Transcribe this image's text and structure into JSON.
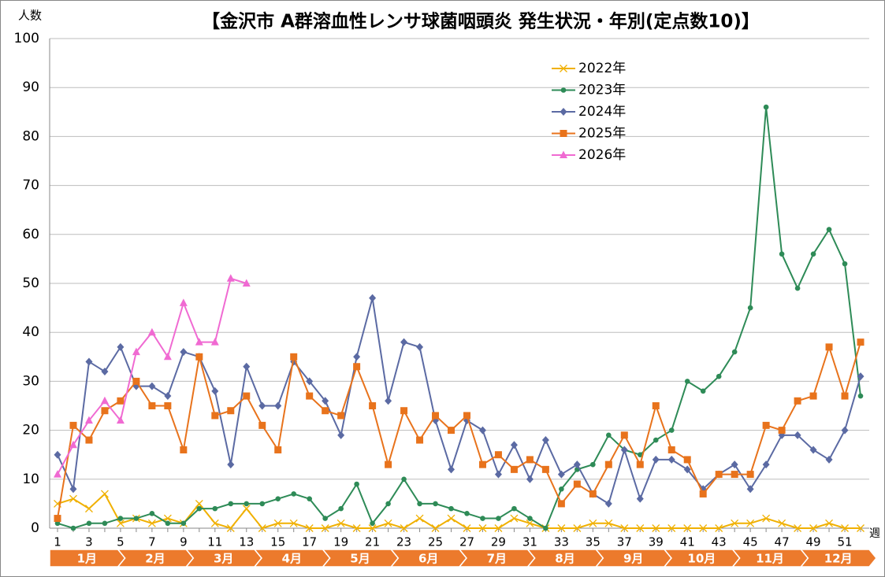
{
  "chart_data": {
    "type": "line",
    "title": "【金沢市 A群溶血性レンサ球菌咽頭炎 発生状況・年別(定点数10)】",
    "y_label": "人数",
    "x_label": "週",
    "categories": [
      1,
      null,
      3,
      null,
      5,
      null,
      7,
      null,
      9,
      null,
      11,
      null,
      13,
      null,
      15,
      null,
      17,
      null,
      19,
      null,
      21,
      null,
      23,
      null,
      25,
      null,
      27,
      null,
      29,
      null,
      31,
      null,
      33,
      null,
      35,
      null,
      37,
      null,
      39,
      null,
      41,
      null,
      43,
      null,
      45,
      null,
      47,
      null,
      49,
      null,
      51,
      null
    ],
    "months": [
      "1月",
      "2月",
      "3月",
      "4月",
      "5月",
      "6月",
      "7月",
      "8月",
      "9月",
      "10月",
      "11月",
      "12月"
    ],
    "ylim": [
      0,
      100
    ],
    "yticks": [
      0,
      10,
      20,
      30,
      40,
      50,
      60,
      70,
      80,
      90,
      100
    ],
    "grid": true,
    "legend": "top-right",
    "series": [
      {
        "name": "2022年",
        "color": "#f0b000",
        "marker": "x",
        "values": [
          5,
          6,
          4,
          7,
          1,
          2,
          1,
          2,
          1,
          5,
          1,
          0,
          4,
          0,
          1,
          1,
          0,
          0,
          1,
          0,
          0,
          1,
          0,
          2,
          0,
          2,
          0,
          0,
          0,
          2,
          1,
          0,
          0,
          0,
          1,
          1,
          0,
          0,
          0,
          0,
          0,
          0,
          0,
          1,
          1,
          2,
          1,
          0,
          0,
          1,
          0,
          0
        ]
      },
      {
        "name": "2023年",
        "color": "#2e8b57",
        "marker": "circle",
        "values": [
          1,
          0,
          1,
          1,
          2,
          2,
          3,
          1,
          1,
          4,
          4,
          5,
          5,
          5,
          6,
          7,
          6,
          2,
          4,
          9,
          1,
          5,
          10,
          5,
          5,
          4,
          3,
          2,
          2,
          4,
          2,
          0,
          8,
          12,
          13,
          19,
          16,
          15,
          18,
          20,
          30,
          28,
          31,
          36,
          45,
          86,
          56,
          49,
          56,
          61,
          54,
          27
        ]
      },
      {
        "name": "2024年",
        "color": "#5b6aa3",
        "marker": "diamond",
        "values": [
          15,
          8,
          34,
          32,
          37,
          29,
          29,
          27,
          36,
          35,
          28,
          13,
          33,
          25,
          25,
          34,
          30,
          26,
          19,
          35,
          47,
          26,
          38,
          37,
          22,
          12,
          22,
          20,
          11,
          17,
          10,
          18,
          11,
          13,
          7,
          5,
          16,
          6,
          14,
          14,
          12,
          8,
          11,
          13,
          8,
          13,
          19,
          19,
          16,
          14,
          20,
          31
        ]
      },
      {
        "name": "2025年",
        "color": "#e8731c",
        "marker": "square",
        "values": [
          2,
          21,
          18,
          24,
          26,
          30,
          25,
          25,
          16,
          35,
          23,
          24,
          27,
          21,
          16,
          35,
          27,
          24,
          23,
          33,
          25,
          13,
          24,
          18,
          23,
          20,
          23,
          13,
          15,
          12,
          14,
          12,
          5,
          9,
          7,
          13,
          19,
          13,
          25,
          16,
          14,
          7,
          11,
          11,
          11,
          21,
          20,
          26,
          27,
          37,
          27,
          38
        ]
      },
      {
        "name": "2026年",
        "color": "#f06ad2",
        "marker": "triangle",
        "values": [
          11,
          17,
          22,
          26,
          22,
          36,
          40,
          35,
          46,
          38,
          38,
          51,
          50,
          null,
          null,
          null,
          null,
          null,
          null,
          null,
          null,
          null,
          null,
          null,
          null,
          null,
          null,
          null,
          null,
          null,
          null,
          null,
          null,
          null,
          null,
          null,
          null,
          null,
          null,
          null,
          null,
          null,
          null,
          null,
          null,
          null,
          null,
          null,
          null,
          null,
          null,
          null
        ]
      }
    ]
  }
}
